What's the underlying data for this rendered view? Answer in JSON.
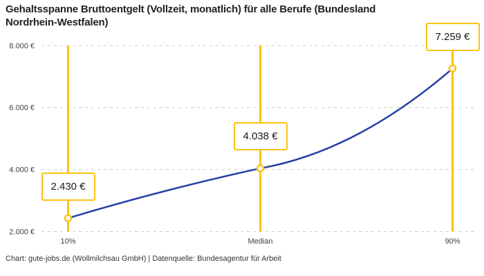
{
  "header": {
    "title_lines": [
      "Gehaltsspanne Bruttoentgelt (Vollzeit, monatlich) für alle Berufe (Bundesland",
      "Nordrhein-Westfalen)"
    ]
  },
  "footer": {
    "credit": "Chart: gute-jobs.de (Wollmilchsau GmbH) | Datenquelle: Bundesagentur für Arbeit"
  },
  "chart_data": {
    "type": "line",
    "title": "Gehaltsspanne Bruttoentgelt (Vollzeit, monatlich) für alle Berufe (Bundesland Nordrhein-Westfalen)",
    "categories": [
      "10%",
      "Median",
      "90%"
    ],
    "values": [
      2430,
      4038,
      7259
    ],
    "value_labels": [
      "2.430 €",
      "4.038 €",
      "7.259 €"
    ],
    "xlabel": "",
    "ylabel": "",
    "ylim": [
      2000,
      8000
    ],
    "yticks": [
      2000,
      4000,
      6000,
      8000
    ],
    "ytick_labels": [
      "2.000 €",
      "4.000 €",
      "6.000 €",
      "8.000 €"
    ],
    "grid": "horizontal-dashed",
    "legend": "none",
    "colors": {
      "line": "#2440a4",
      "highlight": "#fcc216",
      "grid": "#cccccc",
      "axis_text": "#404040",
      "label_text": "#1a1a1a",
      "marker_fill": "#ffffff"
    }
  }
}
